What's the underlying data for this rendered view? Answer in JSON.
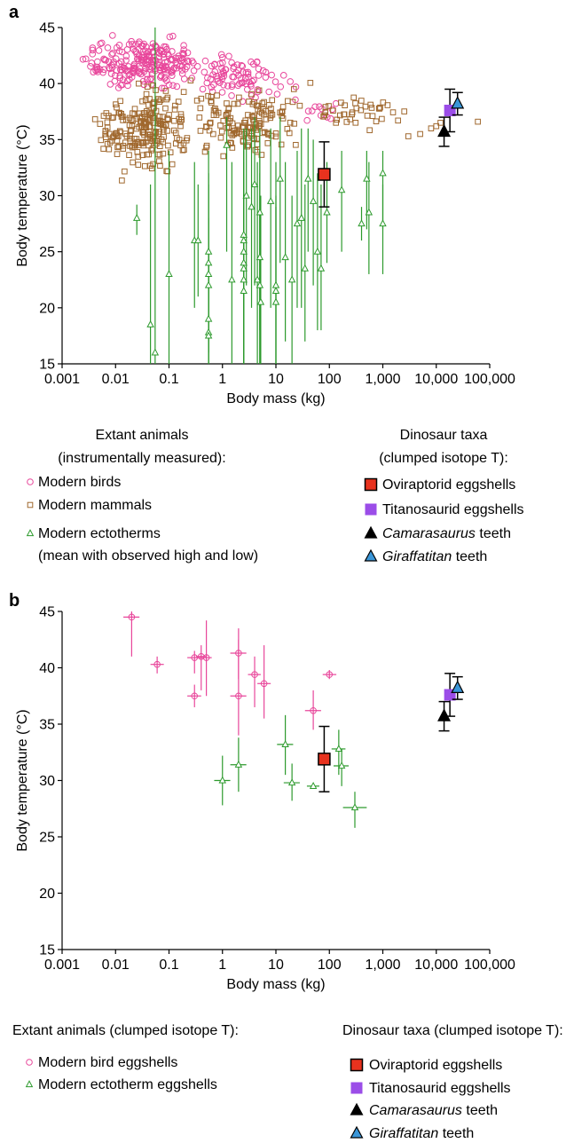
{
  "colors": {
    "bird": "#e8479b",
    "mammal": "#a0682e",
    "ectotherm": "#2d9a2d",
    "oviraptorid": "#e8321e",
    "titanosaurid": "#9b4de8",
    "camarasaurus": "#000000",
    "giraffatitan": "#3a96d8"
  },
  "chart_data": [
    {
      "panel": "a",
      "type": "scatter",
      "xlabel": "Body mass (kg)",
      "ylabel": "Body temperature (°C)",
      "x_scale": "log",
      "xlim": [
        0.001,
        100000
      ],
      "ylim": [
        15,
        45
      ],
      "x_ticks": [
        "0.001",
        "0.01",
        "0.1",
        "1",
        "10",
        "100",
        "1,000",
        "10,000",
        "100,000"
      ],
      "y_ticks": [
        "15",
        "20",
        "25",
        "30",
        "35",
        "40",
        "45"
      ],
      "legend": {
        "extant_header": [
          "Extant animals",
          "(instrumentally measured):"
        ],
        "extant": [
          {
            "key": "bird",
            "label": "Modern birds"
          },
          {
            "key": "mammal",
            "label": "Modern mammals"
          },
          {
            "key": "ectotherm",
            "label": "Modern ectotherms",
            "label2": "(mean with observed high and low)"
          }
        ],
        "dino_header": [
          "Dinosaur taxa",
          "(clumped isotope T):"
        ],
        "dino": [
          {
            "key": "oviraptorid",
            "label": "Oviraptorid eggshells"
          },
          {
            "key": "titanosaurid",
            "label": "Titanosaurid eggshells"
          },
          {
            "key": "camarasaurus",
            "label_it": "Camarasaurus",
            "label": " teeth"
          },
          {
            "key": "giraffatitan",
            "label_it": "Giraffatitan",
            "label": " teeth"
          }
        ]
      },
      "series": [
        {
          "key": "bird",
          "marker": "circle",
          "clusters": [
            {
              "x_range": [
                0.002,
                0.5
              ],
              "y_range": [
                38.5,
                44.5
              ],
              "n": 240,
              "center": [
                0.04,
                42
              ]
            },
            {
              "x_range": [
                0.3,
                30
              ],
              "y_range": [
                38,
                43.5
              ],
              "n": 90,
              "center": [
                2,
                40.5
              ]
            },
            {
              "x_range": [
                20,
                200
              ],
              "y_range": [
                36,
                39
              ],
              "n": 12,
              "center": [
                60,
                37.5
              ]
            }
          ]
        },
        {
          "key": "mammal",
          "marker": "square",
          "clusters": [
            {
              "x_range": [
                0.003,
                0.3
              ],
              "y_range": [
                30,
                40
              ],
              "n": 230,
              "center": [
                0.04,
                36.5
              ]
            },
            {
              "x_range": [
                0.2,
                50
              ],
              "y_range": [
                32,
                40
              ],
              "n": 150,
              "center": [
                3,
                37
              ]
            },
            {
              "x_range": [
                50,
                3000
              ],
              "y_range": [
                35,
                39.5
              ],
              "n": 40,
              "center": [
                300,
                37.5
              ]
            }
          ],
          "points": [
            {
              "x": 3000,
              "y": 35.3
            },
            {
              "x": 5000,
              "y": 35.5
            },
            {
              "x": 8000,
              "y": 36
            },
            {
              "x": 10000,
              "y": 36.2
            },
            {
              "x": 12000,
              "y": 36.5
            },
            {
              "x": 60000,
              "y": 36.6
            }
          ]
        },
        {
          "key": "ectotherm",
          "marker": "triangle",
          "points": [
            {
              "x": 0.025,
              "y": 28.0,
              "lo": 26.5,
              "hi": 29.2
            },
            {
              "x": 0.045,
              "y": 18.5,
              "lo": 15,
              "hi": 31
            },
            {
              "x": 0.055,
              "y": 16.0,
              "lo": 15,
              "hi": 45
            },
            {
              "x": 0.1,
              "y": 23.0,
              "lo": 15,
              "hi": 34
            },
            {
              "x": 0.3,
              "y": 26.0,
              "lo": 20,
              "hi": 33
            },
            {
              "x": 0.35,
              "y": 26.0,
              "lo": 21,
              "hi": 31
            },
            {
              "x": 0.55,
              "y": 25.0,
              "lo": 16,
              "hi": 34
            },
            {
              "x": 0.55,
              "y": 24.0,
              "lo": 15,
              "hi": 32
            },
            {
              "x": 0.55,
              "y": 23.0,
              "lo": 16,
              "hi": 31
            },
            {
              "x": 0.55,
              "y": 22.0,
              "lo": 17,
              "hi": 28
            },
            {
              "x": 0.55,
              "y": 19.0,
              "lo": 15,
              "hi": 25
            },
            {
              "x": 0.55,
              "y": 17.8,
              "lo": 15,
              "hi": 26
            },
            {
              "x": 0.55,
              "y": 17.5,
              "lo": 15,
              "hi": 24
            },
            {
              "x": 1.2,
              "y": 34.5,
              "lo": 25,
              "hi": 37
            },
            {
              "x": 1.5,
              "y": 22.5,
              "lo": 15,
              "hi": 33
            },
            {
              "x": 2.5,
              "y": 26.5,
              "lo": 18,
              "hi": 36
            },
            {
              "x": 2.5,
              "y": 26.0,
              "lo": 15,
              "hi": 35
            },
            {
              "x": 2.5,
              "y": 25.0,
              "lo": 15,
              "hi": 34
            },
            {
              "x": 2.5,
              "y": 24.0,
              "lo": 15,
              "hi": 33
            },
            {
              "x": 2.5,
              "y": 23.5,
              "lo": 15,
              "hi": 32
            },
            {
              "x": 2.5,
              "y": 22.5,
              "lo": 15,
              "hi": 30
            },
            {
              "x": 2.5,
              "y": 21.5,
              "lo": 15,
              "hi": 28
            },
            {
              "x": 2.8,
              "y": 30.0,
              "lo": 22,
              "hi": 36
            },
            {
              "x": 3.5,
              "y": 29.0,
              "lo": 20,
              "hi": 36
            },
            {
              "x": 4,
              "y": 31.0,
              "lo": 22,
              "hi": 37
            },
            {
              "x": 4.5,
              "y": 22.5,
              "lo": 15,
              "hi": 33
            },
            {
              "x": 5,
              "y": 28.5,
              "lo": 18,
              "hi": 36
            },
            {
              "x": 5,
              "y": 24.5,
              "lo": 15,
              "hi": 34
            },
            {
              "x": 5,
              "y": 22.0,
              "lo": 15,
              "hi": 32
            },
            {
              "x": 5.2,
              "y": 20.5,
              "lo": 15,
              "hi": 30
            },
            {
              "x": 8,
              "y": 29.5,
              "lo": 20,
              "hi": 36
            },
            {
              "x": 10,
              "y": 21.5,
              "lo": 15,
              "hi": 30
            },
            {
              "x": 10,
              "y": 20.5,
              "lo": 15,
              "hi": 29
            },
            {
              "x": 10,
              "y": 22.0,
              "lo": 15,
              "hi": 33
            },
            {
              "x": 12,
              "y": 31.5,
              "lo": 24,
              "hi": 37
            },
            {
              "x": 15,
              "y": 24.5,
              "lo": 17,
              "hi": 33
            },
            {
              "x": 20,
              "y": 22.5,
              "lo": 15,
              "hi": 30
            },
            {
              "x": 25,
              "y": 27.5,
              "lo": 20,
              "hi": 34
            },
            {
              "x": 30,
              "y": 28.0,
              "lo": 20,
              "hi": 36
            },
            {
              "x": 35,
              "y": 23.5,
              "lo": 17,
              "hi": 31
            },
            {
              "x": 40,
              "y": 31.5,
              "lo": 25,
              "hi": 36
            },
            {
              "x": 50,
              "y": 29.5,
              "lo": 22,
              "hi": 35
            },
            {
              "x": 60,
              "y": 25.0,
              "lo": 18,
              "hi": 32
            },
            {
              "x": 70,
              "y": 23.5,
              "lo": 18,
              "hi": 31
            },
            {
              "x": 90,
              "y": 28.5,
              "lo": 24,
              "hi": 33
            },
            {
              "x": 170,
              "y": 30.5,
              "lo": 25,
              "hi": 34
            },
            {
              "x": 400,
              "y": 27.5,
              "lo": 26,
              "hi": 29
            },
            {
              "x": 500,
              "y": 31.5,
              "lo": 27,
              "hi": 34
            },
            {
              "x": 550,
              "y": 28.5,
              "lo": 23,
              "hi": 33
            },
            {
              "x": 1000,
              "y": 32.0,
              "lo": 27,
              "hi": 34
            },
            {
              "x": 1000,
              "y": 27.5,
              "lo": 23,
              "hi": 31
            }
          ]
        },
        {
          "key": "oviraptorid",
          "marker": "square-big",
          "points": [
            {
              "x": 80,
              "y": 31.9,
              "lo": 29.0,
              "hi": 34.8
            }
          ]
        },
        {
          "key": "titanosaurid",
          "marker": "square-big",
          "points": [
            {
              "x": 18000,
              "y": 37.6,
              "lo": 35.7,
              "hi": 39.5
            }
          ]
        },
        {
          "key": "camarasaurus",
          "marker": "triangle-big",
          "points": [
            {
              "x": 14000,
              "y": 35.7,
              "lo": 34.4,
              "hi": 37.0
            }
          ]
        },
        {
          "key": "giraffatitan",
          "marker": "triangle-big",
          "points": [
            {
              "x": 25000,
              "y": 38.2,
              "lo": 37.2,
              "hi": 39.2
            }
          ]
        }
      ]
    },
    {
      "panel": "b",
      "type": "scatter",
      "xlabel": "Body mass (kg)",
      "ylabel": "Body temperature (°C)",
      "x_scale": "log",
      "xlim": [
        0.001,
        100000
      ],
      "ylim": [
        15,
        45
      ],
      "x_ticks": [
        "0.001",
        "0.01",
        "0.1",
        "1",
        "10",
        "100",
        "1,000",
        "10,000",
        "100,000"
      ],
      "y_ticks": [
        "15",
        "20",
        "25",
        "30",
        "35",
        "40",
        "45"
      ],
      "legend": {
        "extant_header": [
          "Extant animals (clumped isotope T):"
        ],
        "extant": [
          {
            "key": "bird",
            "label": "Modern bird eggshells"
          },
          {
            "key": "ectotherm",
            "label": "Modern ectotherm eggshells"
          }
        ],
        "dino_header": [
          "Dinosaur taxa (clumped isotope T):"
        ],
        "dino": [
          {
            "key": "oviraptorid",
            "label": "Oviraptorid eggshells"
          },
          {
            "key": "titanosaurid",
            "label": "Titanosaurid eggshells"
          },
          {
            "key": "camarasaurus",
            "label_it": "Camarasaurus",
            "label": " teeth"
          },
          {
            "key": "giraffatitan",
            "label_it": "Giraffatitan",
            "label": " teeth"
          }
        ]
      },
      "series": [
        {
          "key": "bird",
          "marker": "circle",
          "points": [
            {
              "x": 0.02,
              "y": 44.5,
              "lo": 41.0,
              "hi": 45.0,
              "xlo": 0.014,
              "xhi": 0.028
            },
            {
              "x": 0.06,
              "y": 40.3,
              "lo": 39.5,
              "hi": 41.0,
              "xlo": 0.045,
              "xhi": 0.08
            },
            {
              "x": 0.3,
              "y": 37.5,
              "lo": 36.5,
              "hi": 38.5,
              "xlo": 0.22,
              "xhi": 0.4
            },
            {
              "x": 0.3,
              "y": 40.9,
              "lo": 39.5,
              "hi": 41.5,
              "xlo": 0.22,
              "xhi": 0.4
            },
            {
              "x": 0.4,
              "y": 41.0,
              "lo": 38.0,
              "hi": 42.0,
              "xlo": 0.32,
              "xhi": 0.5
            },
            {
              "x": 0.5,
              "y": 40.9,
              "lo": 37.5,
              "hi": 44.2,
              "xlo": 0.4,
              "xhi": 0.63
            },
            {
              "x": 2,
              "y": 41.3,
              "lo": 39.0,
              "hi": 43.5,
              "xlo": 1.4,
              "xhi": 2.8
            },
            {
              "x": 2,
              "y": 37.5,
              "lo": 34.0,
              "hi": 42.5,
              "xlo": 1.4,
              "xhi": 2.8
            },
            {
              "x": 4,
              "y": 39.4,
              "lo": 36.5,
              "hi": 41.0,
              "xlo": 3.0,
              "xhi": 5.2
            },
            {
              "x": 6,
              "y": 38.6,
              "lo": 35.5,
              "hi": 42.0,
              "xlo": 4.5,
              "xhi": 8
            },
            {
              "x": 50,
              "y": 36.2,
              "lo": 34.5,
              "hi": 38.0,
              "xlo": 35,
              "xhi": 70
            },
            {
              "x": 100,
              "y": 39.4,
              "lo": 39.0,
              "hi": 39.8,
              "xlo": 75,
              "xhi": 135
            }
          ]
        },
        {
          "key": "ectotherm",
          "marker": "triangle",
          "points": [
            {
              "x": 1,
              "y": 30.0,
              "lo": 27.8,
              "hi": 32.2,
              "xlo": 0.7,
              "xhi": 1.4
            },
            {
              "x": 2,
              "y": 31.4,
              "lo": 29.0,
              "hi": 33.8,
              "xlo": 1.4,
              "xhi": 2.8
            },
            {
              "x": 15,
              "y": 33.2,
              "lo": 30.5,
              "hi": 35.8,
              "xlo": 10.5,
              "xhi": 21
            },
            {
              "x": 20,
              "y": 29.8,
              "lo": 28.2,
              "hi": 31.5,
              "xlo": 14,
              "xhi": 28
            },
            {
              "x": 50,
              "y": 29.5,
              "lo": 29.3,
              "hi": 29.7,
              "xlo": 38,
              "xhi": 65
            },
            {
              "x": 150,
              "y": 32.8,
              "lo": 30.5,
              "hi": 34.5,
              "xlo": 110,
              "xhi": 200
            },
            {
              "x": 170,
              "y": 31.3,
              "lo": 29.5,
              "hi": 32.8,
              "xlo": 120,
              "xhi": 230
            },
            {
              "x": 300,
              "y": 27.6,
              "lo": 25.8,
              "hi": 29.0,
              "xlo": 180,
              "xhi": 500
            }
          ]
        },
        {
          "key": "oviraptorid",
          "marker": "square-big",
          "points": [
            {
              "x": 80,
              "y": 31.9,
              "lo": 29.0,
              "hi": 34.8
            }
          ]
        },
        {
          "key": "titanosaurid",
          "marker": "square-big",
          "points": [
            {
              "x": 18000,
              "y": 37.6,
              "lo": 35.7,
              "hi": 39.5
            }
          ]
        },
        {
          "key": "camarasaurus",
          "marker": "triangle-big",
          "points": [
            {
              "x": 14000,
              "y": 35.7,
              "lo": 34.4,
              "hi": 37.0
            }
          ]
        },
        {
          "key": "giraffatitan",
          "marker": "triangle-big",
          "points": [
            {
              "x": 25000,
              "y": 38.2,
              "lo": 37.2,
              "hi": 39.2
            }
          ]
        }
      ]
    }
  ]
}
